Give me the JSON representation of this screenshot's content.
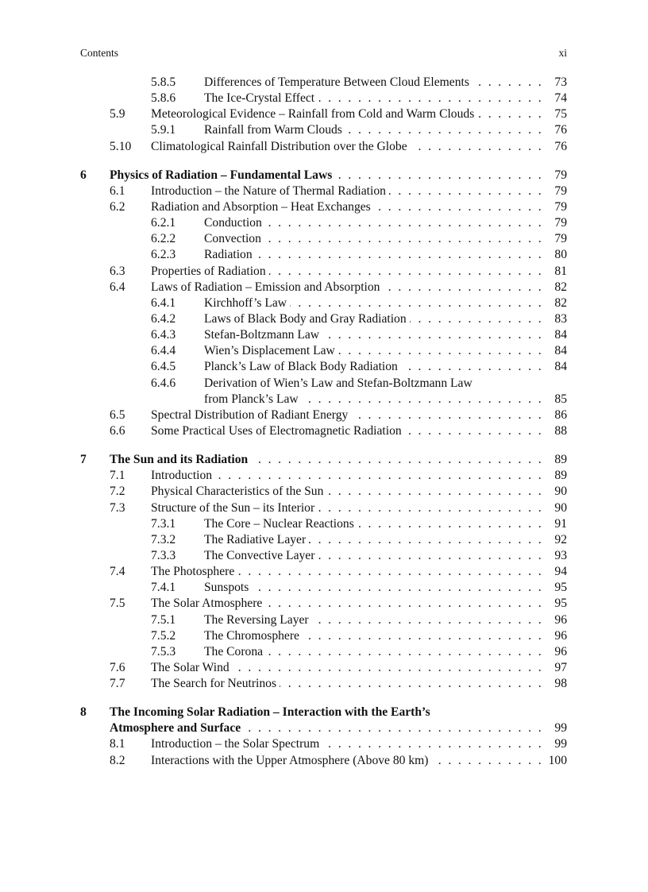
{
  "header": {
    "left": "Contents",
    "right": "xi"
  },
  "entries": [
    {
      "level": 3,
      "num": "5.8.5",
      "title": "Differences of Temperature Between Cloud Elements",
      "page": "73"
    },
    {
      "level": 3,
      "num": "5.8.6",
      "title": "The Ice-Crystal Effect",
      "page": "74"
    },
    {
      "level": 2,
      "num": "5.9",
      "title": "Meteorological Evidence – Rainfall from Cold and Warm Clouds",
      "page": "75"
    },
    {
      "level": 3,
      "num": "5.9.1",
      "title": "Rainfall from Warm Clouds",
      "page": "76"
    },
    {
      "level": 2,
      "num": "5.10",
      "title": "Climatological Rainfall Distribution over the Globe",
      "page": "76"
    },
    {
      "level": 1,
      "num": "6",
      "title": "Physics of Radiation – Fundamental Laws",
      "page": "79"
    },
    {
      "level": 2,
      "num": "6.1",
      "title": "Introduction – the Nature of Thermal Radiation",
      "page": "79"
    },
    {
      "level": 2,
      "num": "6.2",
      "title": "Radiation and Absorption – Heat Exchanges",
      "page": "79"
    },
    {
      "level": 3,
      "num": "6.2.1",
      "title": "Conduction",
      "page": "79"
    },
    {
      "level": 3,
      "num": "6.2.2",
      "title": "Convection",
      "page": "79"
    },
    {
      "level": 3,
      "num": "6.2.3",
      "title": "Radiation",
      "page": "80"
    },
    {
      "level": 2,
      "num": "6.3",
      "title": "Properties of Radiation",
      "page": "81"
    },
    {
      "level": 2,
      "num": "6.4",
      "title": "Laws of Radiation – Emission and Absorption",
      "page": "82"
    },
    {
      "level": 3,
      "num": "6.4.1",
      "title": "Kirchhoff’s Law",
      "page": "82"
    },
    {
      "level": 3,
      "num": "6.4.2",
      "title": "Laws of Black Body and Gray Radiation",
      "page": "83"
    },
    {
      "level": 3,
      "num": "6.4.3",
      "title": "Stefan-Boltzmann Law",
      "page": "84"
    },
    {
      "level": 3,
      "num": "6.4.4",
      "title": "Wien’s Displacement Law",
      "page": "84"
    },
    {
      "level": 3,
      "num": "6.4.5",
      "title": "Planck’s Law of Black Body Radiation",
      "page": "84"
    },
    {
      "level": 3,
      "num": "6.4.6",
      "title": "Derivation of Wien’s Law and Stefan-Boltzmann Law",
      "title2": "from Planck’s Law",
      "page": "85"
    },
    {
      "level": 2,
      "num": "6.5",
      "title": "Spectral Distribution of Radiant Energy",
      "page": "86"
    },
    {
      "level": 2,
      "num": "6.6",
      "title": "Some Practical Uses of Electromagnetic Radiation",
      "page": "88"
    },
    {
      "level": 1,
      "num": "7",
      "title": "The Sun and its Radiation",
      "page": "89"
    },
    {
      "level": 2,
      "num": "7.1",
      "title": "Introduction",
      "page": "89"
    },
    {
      "level": 2,
      "num": "7.2",
      "title": "Physical Characteristics of the Sun",
      "page": "90"
    },
    {
      "level": 2,
      "num": "7.3",
      "title": "Structure of the Sun – its Interior",
      "page": "90"
    },
    {
      "level": 3,
      "num": "7.3.1",
      "title": "The Core – Nuclear Reactions",
      "page": "91"
    },
    {
      "level": 3,
      "num": "7.3.2",
      "title": "The Radiative Layer",
      "page": "92"
    },
    {
      "level": 3,
      "num": "7.3.3",
      "title": "The Convective Layer",
      "page": "93"
    },
    {
      "level": 2,
      "num": "7.4",
      "title": "The Photosphere",
      "page": "94"
    },
    {
      "level": 3,
      "num": "7.4.1",
      "title": "Sunspots",
      "page": "95"
    },
    {
      "level": 2,
      "num": "7.5",
      "title": "The Solar Atmosphere",
      "page": "95"
    },
    {
      "level": 3,
      "num": "7.5.1",
      "title": "The Reversing Layer",
      "page": "96"
    },
    {
      "level": 3,
      "num": "7.5.2",
      "title": "The Chromosphere",
      "page": "96"
    },
    {
      "level": 3,
      "num": "7.5.3",
      "title": "The Corona",
      "page": "96"
    },
    {
      "level": 2,
      "num": "7.6",
      "title": "The Solar Wind",
      "page": "97"
    },
    {
      "level": 2,
      "num": "7.7",
      "title": "The Search for Neutrinos",
      "page": "98"
    },
    {
      "level": 1,
      "num": "8",
      "title": "The Incoming Solar Radiation – Interaction with the Earth’s",
      "title2": "Atmosphere and Surface",
      "page": "99"
    },
    {
      "level": 2,
      "num": "8.1",
      "title": "Introduction – the Solar Spectrum",
      "page": "99"
    },
    {
      "level": 2,
      "num": "8.2",
      "title": "Interactions with the Upper Atmosphere (Above 80 km)",
      "page": "100"
    }
  ]
}
